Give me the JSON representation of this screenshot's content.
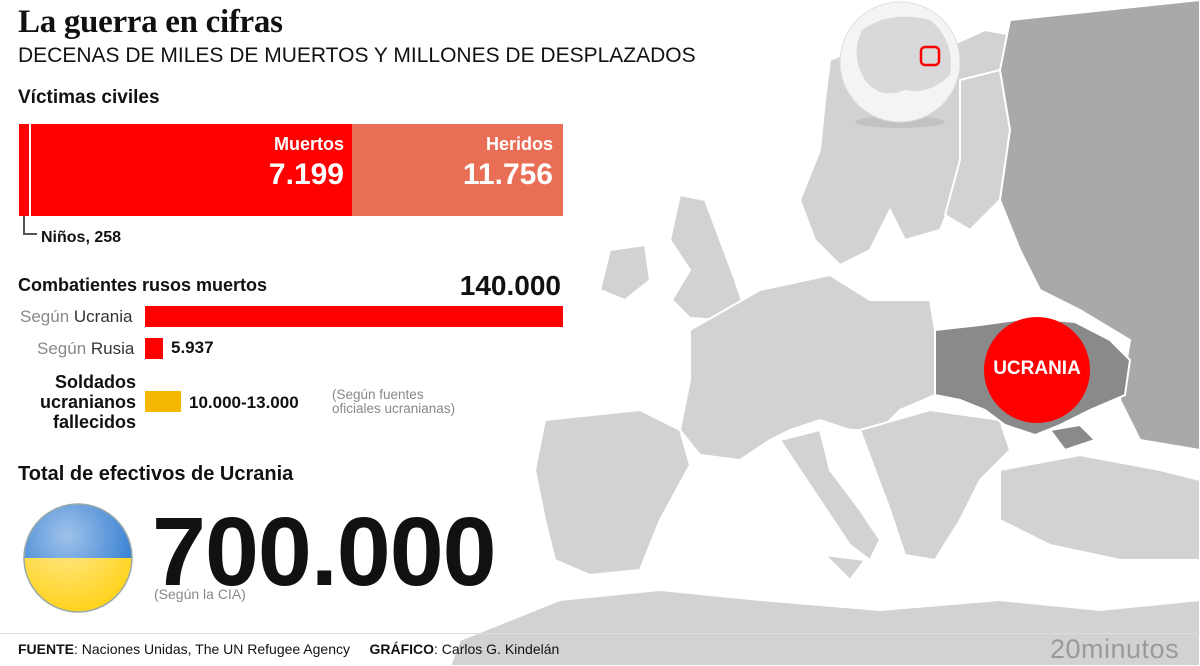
{
  "header": {
    "title": "La guerra en cifras",
    "subtitle": "DECENAS DE MILES DE MUERTOS Y MILLONES DE DESPLAZADOS"
  },
  "civiles": {
    "heading": "Víctimas civiles",
    "muertos_label": "Muertos",
    "muertos_value": "7.199",
    "heridos_label": "Heridos",
    "heridos_value": "11.756",
    "ninos_label": "Niños, 258"
  },
  "rusos": {
    "heading": "Combatientes rusos muertos",
    "segun_ucrania_prefix": "Según",
    "segun_ucrania_source": "Ucrania",
    "segun_ucrania_value": "140.000",
    "segun_rusia_prefix": "Según",
    "segun_rusia_source": "Rusia",
    "segun_rusia_value": "5.937"
  },
  "ucranianos": {
    "label_line1": "Soldados",
    "label_line2": "ucranianos",
    "label_line3": "fallecidos",
    "value": "10.000-13.000",
    "note_line1": "(Según fuentes",
    "note_line2": "oficiales ucranianas)"
  },
  "efectivos": {
    "heading": "Total de efectivos de Ucrania",
    "value": "700.000",
    "source": "(Según la CIA)"
  },
  "map": {
    "country_label": "UCRANIA"
  },
  "footer": {
    "fuente_label": "FUENTE",
    "fuente_text": ": Naciones Unidas, The UN Refugee Agency",
    "grafico_label": "GRÁFICO",
    "grafico_text": ": Carlos G. Kindelán",
    "brand": "20minutos"
  },
  "colors": {
    "muertos": "#ff0000",
    "heridos": "#e86f55",
    "ucranianos": "#f5b800",
    "ukraine_map": "#8a8a8a",
    "land": "#d0d0d0",
    "russia": "#a9a9a9"
  },
  "chart_data": [
    {
      "type": "bar",
      "title": "Víctimas civiles",
      "orientation": "horizontal-stacked",
      "categories": [
        "Niños",
        "Muertos",
        "Heridos"
      ],
      "values": [
        258,
        7199,
        11756
      ]
    },
    {
      "type": "bar",
      "title": "Combatientes rusos muertos",
      "orientation": "horizontal",
      "categories": [
        "Según Ucrania",
        "Según Rusia"
      ],
      "values": [
        140000,
        5937
      ]
    },
    {
      "type": "bar",
      "title": "Soldados ucranianos fallecidos",
      "orientation": "horizontal",
      "categories": [
        "Soldados ucranianos fallecidos"
      ],
      "values": [
        11500
      ],
      "value_range": [
        10000,
        13000
      ]
    }
  ]
}
